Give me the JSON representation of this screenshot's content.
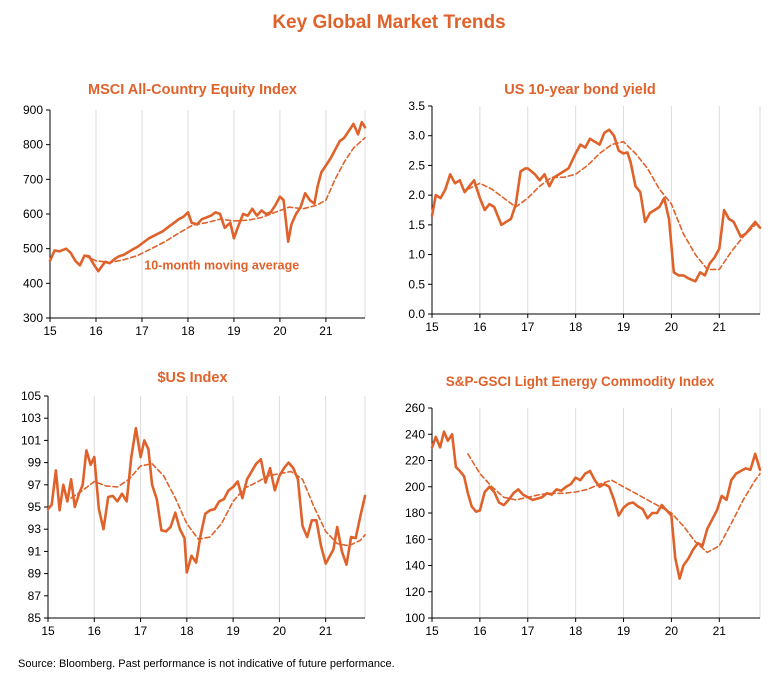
{
  "page": {
    "title": "Key Global Market Trends",
    "source": "Source: Bloomberg. Past performance is not indicative of future performance."
  },
  "colors": {
    "accent": "#e0622b",
    "grid": "#dcdcdc",
    "axis": "#000000"
  },
  "chart_data": [
    {
      "type": "line",
      "title": "MSCI All-Country Equity Index",
      "annotation": "10-month moving average",
      "x_ticks": [
        "15",
        "16",
        "17",
        "18",
        "19",
        "20",
        "21"
      ],
      "xlim": [
        2015,
        2021.85
      ],
      "ylim": [
        300,
        900
      ],
      "y_ticks": [
        "300",
        "400",
        "500",
        "600",
        "700",
        "800",
        "900"
      ],
      "grid": "vertical",
      "series": [
        {
          "style": "solid",
          "x": [
            2015.0,
            2015.1,
            2015.2,
            2015.35,
            2015.45,
            2015.55,
            2015.65,
            2015.75,
            2015.85,
            2015.95,
            2016.05,
            2016.12,
            2016.2,
            2016.3,
            2016.4,
            2016.5,
            2016.6,
            2016.7,
            2016.8,
            2016.9,
            2017.0,
            2017.15,
            2017.3,
            2017.45,
            2017.6,
            2017.7,
            2017.8,
            2017.9,
            2018.0,
            2018.08,
            2018.2,
            2018.3,
            2018.4,
            2018.5,
            2018.6,
            2018.7,
            2018.8,
            2018.92,
            2019.0,
            2019.08,
            2019.2,
            2019.3,
            2019.4,
            2019.5,
            2019.6,
            2019.7,
            2019.8,
            2019.9,
            2020.0,
            2020.08,
            2020.18,
            2020.25,
            2020.35,
            2020.45,
            2020.55,
            2020.65,
            2020.75,
            2020.82,
            2020.9,
            2021.0,
            2021.1,
            2021.2,
            2021.3,
            2021.4,
            2021.5,
            2021.6,
            2021.7,
            2021.78,
            2021.85
          ],
          "y": [
            465,
            495,
            492,
            500,
            488,
            465,
            452,
            480,
            478,
            455,
            435,
            448,
            462,
            458,
            470,
            478,
            482,
            490,
            498,
            505,
            515,
            530,
            540,
            550,
            565,
            575,
            585,
            592,
            605,
            575,
            570,
            585,
            590,
            595,
            605,
            600,
            560,
            575,
            530,
            560,
            600,
            595,
            615,
            595,
            610,
            600,
            605,
            625,
            650,
            640,
            520,
            570,
            600,
            620,
            660,
            640,
            630,
            680,
            720,
            740,
            760,
            785,
            810,
            820,
            840,
            860,
            830,
            865,
            850
          ]
        },
        {
          "style": "dashed",
          "x": [
            2015.75,
            2016.0,
            2016.3,
            2016.6,
            2016.9,
            2017.2,
            2017.5,
            2017.8,
            2018.1,
            2018.4,
            2018.7,
            2019.0,
            2019.3,
            2019.6,
            2019.9,
            2020.2,
            2020.5,
            2020.8,
            2021.0,
            2021.2,
            2021.4,
            2021.6,
            2021.85
          ],
          "y": [
            480,
            465,
            460,
            468,
            480,
            500,
            520,
            545,
            568,
            575,
            585,
            580,
            582,
            590,
            605,
            620,
            615,
            625,
            640,
            700,
            750,
            790,
            820
          ]
        }
      ]
    },
    {
      "type": "line",
      "title": "US 10-year bond  yield",
      "x_ticks": [
        "15",
        "16",
        "17",
        "18",
        "19",
        "20",
        "21"
      ],
      "xlim": [
        2015,
        2021.85
      ],
      "ylim": [
        0,
        3.5
      ],
      "y_ticks": [
        "0.0",
        "0.5",
        "1.0",
        "1.5",
        "2.0",
        "2.5",
        "3.0",
        "3.5"
      ],
      "grid": "vertical",
      "series": [
        {
          "style": "solid",
          "x": [
            2015.0,
            2015.08,
            2015.18,
            2015.28,
            2015.38,
            2015.48,
            2015.58,
            2015.68,
            2015.78,
            2015.88,
            2016.0,
            2016.1,
            2016.2,
            2016.3,
            2016.45,
            2016.55,
            2016.65,
            2016.75,
            2016.85,
            2016.95,
            2017.0,
            2017.15,
            2017.25,
            2017.35,
            2017.45,
            2017.55,
            2017.65,
            2017.75,
            2017.85,
            2018.0,
            2018.1,
            2018.2,
            2018.3,
            2018.4,
            2018.5,
            2018.6,
            2018.7,
            2018.8,
            2018.9,
            2019.0,
            2019.08,
            2019.15,
            2019.25,
            2019.35,
            2019.45,
            2019.55,
            2019.65,
            2019.75,
            2019.85,
            2019.95,
            2020.05,
            2020.15,
            2020.25,
            2020.35,
            2020.5,
            2020.6,
            2020.7,
            2020.8,
            2020.9,
            2021.0,
            2021.1,
            2021.2,
            2021.3,
            2021.45,
            2021.55,
            2021.65,
            2021.75,
            2021.85
          ],
          "y": [
            1.65,
            2.0,
            1.95,
            2.1,
            2.35,
            2.2,
            2.25,
            2.05,
            2.15,
            2.25,
            1.95,
            1.75,
            1.85,
            1.8,
            1.5,
            1.55,
            1.6,
            1.85,
            2.4,
            2.45,
            2.45,
            2.35,
            2.25,
            2.35,
            2.15,
            2.3,
            2.35,
            2.4,
            2.45,
            2.7,
            2.85,
            2.8,
            2.95,
            2.9,
            2.85,
            3.05,
            3.1,
            3.0,
            2.75,
            2.7,
            2.72,
            2.55,
            2.15,
            2.05,
            1.55,
            1.7,
            1.75,
            1.8,
            1.95,
            1.6,
            0.7,
            0.65,
            0.65,
            0.6,
            0.55,
            0.7,
            0.65,
            0.85,
            0.95,
            1.1,
            1.75,
            1.6,
            1.55,
            1.3,
            1.35,
            1.45,
            1.55,
            1.45
          ]
        },
        {
          "style": "dashed",
          "x": [
            2015.75,
            2016.0,
            2016.25,
            2016.5,
            2016.75,
            2017.0,
            2017.25,
            2017.5,
            2017.75,
            2018.0,
            2018.25,
            2018.5,
            2018.75,
            2019.0,
            2019.25,
            2019.5,
            2019.75,
            2020.0,
            2020.25,
            2020.5,
            2020.75,
            2021.0,
            2021.25,
            2021.5,
            2021.75
          ],
          "y": [
            2.1,
            2.2,
            2.1,
            1.95,
            1.8,
            1.95,
            2.15,
            2.3,
            2.3,
            2.35,
            2.5,
            2.7,
            2.85,
            2.9,
            2.7,
            2.45,
            2.1,
            1.85,
            1.35,
            1.0,
            0.75,
            0.75,
            1.05,
            1.3,
            1.5
          ]
        }
      ]
    },
    {
      "type": "line",
      "title": "$US Index",
      "x_ticks": [
        "15",
        "16",
        "17",
        "18",
        "19",
        "20",
        "21"
      ],
      "xlim": [
        2015,
        2021.85
      ],
      "ylim": [
        85,
        105
      ],
      "y_ticks": [
        "85",
        "87",
        "89",
        "91",
        "93",
        "95",
        "97",
        "99",
        "101",
        "103",
        "105"
      ],
      "grid": "vertical",
      "series": [
        {
          "style": "solid",
          "x": [
            2015.0,
            2015.08,
            2015.17,
            2015.25,
            2015.33,
            2015.42,
            2015.5,
            2015.58,
            2015.67,
            2015.75,
            2015.83,
            2015.92,
            2016.0,
            2016.1,
            2016.2,
            2016.3,
            2016.4,
            2016.5,
            2016.6,
            2016.7,
            2016.8,
            2016.9,
            2017.0,
            2017.08,
            2017.17,
            2017.25,
            2017.35,
            2017.45,
            2017.55,
            2017.65,
            2017.75,
            2017.85,
            2017.95,
            2018.0,
            2018.1,
            2018.2,
            2018.3,
            2018.4,
            2018.5,
            2018.6,
            2018.7,
            2018.8,
            2018.9,
            2019.0,
            2019.1,
            2019.2,
            2019.3,
            2019.4,
            2019.5,
            2019.6,
            2019.7,
            2019.8,
            2019.9,
            2020.0,
            2020.1,
            2020.2,
            2020.3,
            2020.4,
            2020.5,
            2020.6,
            2020.7,
            2020.8,
            2020.9,
            2021.0,
            2021.08,
            2021.17,
            2021.25,
            2021.35,
            2021.45,
            2021.55,
            2021.65,
            2021.75,
            2021.85
          ],
          "y": [
            94.8,
            95.2,
            98.3,
            94.7,
            97.0,
            95.5,
            97.5,
            95.0,
            96.2,
            97.0,
            100.1,
            98.8,
            99.5,
            94.8,
            93.0,
            95.9,
            96.0,
            95.5,
            96.2,
            95.5,
            99.5,
            102.1,
            99.5,
            101.0,
            100.2,
            97.0,
            95.7,
            92.9,
            92.8,
            93.2,
            94.5,
            93.0,
            92.2,
            89.1,
            90.6,
            90.0,
            92.5,
            94.4,
            94.7,
            94.8,
            95.5,
            95.7,
            96.5,
            96.8,
            97.3,
            95.8,
            97.5,
            98.2,
            98.9,
            99.3,
            97.2,
            98.5,
            96.5,
            97.8,
            98.5,
            99.0,
            98.5,
            97.5,
            93.3,
            92.3,
            93.8,
            93.8,
            91.5,
            89.9,
            90.5,
            91.2,
            93.2,
            91.0,
            89.8,
            92.3,
            92.2,
            94.2,
            96.0
          ]
        },
        {
          "style": "dashed",
          "x": [
            2015.5,
            2015.75,
            2016.0,
            2016.25,
            2016.5,
            2016.75,
            2017.0,
            2017.25,
            2017.5,
            2017.75,
            2018.0,
            2018.25,
            2018.5,
            2018.75,
            2019.0,
            2019.25,
            2019.5,
            2019.75,
            2020.0,
            2020.25,
            2020.5,
            2020.75,
            2021.0,
            2021.25,
            2021.5,
            2021.75,
            2021.85
          ],
          "y": [
            95.8,
            96.5,
            97.3,
            96.9,
            96.8,
            97.5,
            98.7,
            98.9,
            97.8,
            95.8,
            93.5,
            92.1,
            92.3,
            93.5,
            95.5,
            96.7,
            97.2,
            97.8,
            98.0,
            98.2,
            97.5,
            95.0,
            92.8,
            91.7,
            91.5,
            92.0,
            92.5
          ]
        }
      ]
    },
    {
      "type": "line",
      "title": "S&P-GSCI Light Energy Commodity  Index",
      "x_ticks": [
        "15",
        "16",
        "17",
        "18",
        "19",
        "20",
        "21"
      ],
      "xlim": [
        2015,
        2021.85
      ],
      "ylim": [
        100,
        260
      ],
      "y_ticks": [
        "100",
        "120",
        "140",
        "160",
        "180",
        "200",
        "220",
        "240",
        "260"
      ],
      "grid": "vertical",
      "series": [
        {
          "style": "solid",
          "x": [
            2015.0,
            2015.08,
            2015.17,
            2015.25,
            2015.33,
            2015.42,
            2015.5,
            2015.58,
            2015.67,
            2015.75,
            2015.83,
            2015.92,
            2016.0,
            2016.1,
            2016.2,
            2016.3,
            2016.4,
            2016.5,
            2016.6,
            2016.7,
            2016.8,
            2016.9,
            2017.0,
            2017.1,
            2017.2,
            2017.3,
            2017.4,
            2017.5,
            2017.6,
            2017.7,
            2017.8,
            2017.9,
            2018.0,
            2018.1,
            2018.2,
            2018.3,
            2018.4,
            2018.5,
            2018.6,
            2018.7,
            2018.8,
            2018.9,
            2019.0,
            2019.1,
            2019.2,
            2019.3,
            2019.4,
            2019.5,
            2019.6,
            2019.7,
            2019.8,
            2019.9,
            2020.0,
            2020.08,
            2020.17,
            2020.25,
            2020.35,
            2020.45,
            2020.55,
            2020.65,
            2020.75,
            2020.85,
            2020.95,
            2021.05,
            2021.15,
            2021.25,
            2021.35,
            2021.45,
            2021.55,
            2021.65,
            2021.75,
            2021.85
          ],
          "y": [
            230,
            238,
            230,
            242,
            235,
            240,
            215,
            212,
            208,
            195,
            185,
            181,
            182,
            196,
            200,
            196,
            188,
            186,
            190,
            195,
            198,
            194,
            192,
            190,
            191,
            192,
            195,
            194,
            198,
            197,
            200,
            202,
            207,
            205,
            210,
            212,
            205,
            200,
            202,
            200,
            190,
            178,
            184,
            187,
            188,
            185,
            183,
            176,
            180,
            180,
            186,
            182,
            178,
            146,
            130,
            140,
            145,
            152,
            157,
            155,
            168,
            175,
            182,
            193,
            190,
            205,
            210,
            212,
            214,
            213,
            225,
            213
          ]
        },
        {
          "style": "dashed",
          "x": [
            2015.75,
            2016.0,
            2016.25,
            2016.5,
            2016.75,
            2017.0,
            2017.25,
            2017.5,
            2017.75,
            2018.0,
            2018.25,
            2018.5,
            2018.75,
            2019.0,
            2019.25,
            2019.5,
            2019.75,
            2020.0,
            2020.25,
            2020.5,
            2020.75,
            2021.0,
            2021.25,
            2021.5,
            2021.75,
            2021.85
          ],
          "y": [
            225,
            210,
            200,
            192,
            190,
            192,
            194,
            195,
            195,
            196,
            198,
            202,
            205,
            200,
            195,
            190,
            185,
            180,
            170,
            158,
            150,
            155,
            172,
            190,
            205,
            210
          ]
        }
      ]
    }
  ]
}
